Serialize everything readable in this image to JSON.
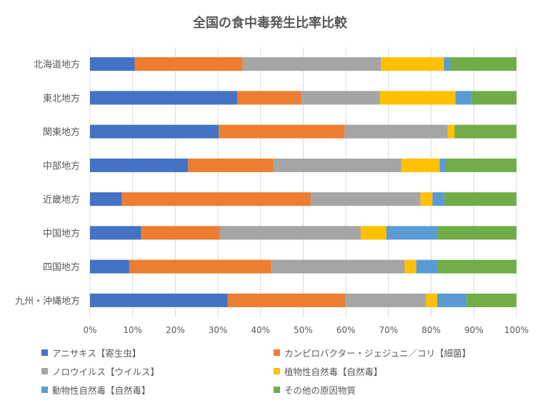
{
  "chart_data": {
    "type": "bar",
    "orientation": "horizontal",
    "stacked": "percent",
    "title": "全国の食中毒発生比率比較",
    "categories": [
      "北海道地方",
      "東北地方",
      "関東地方",
      "中部地方",
      "近畿地方",
      "中国地方",
      "四国地方",
      "九州・沖縄地方"
    ],
    "series": [
      {
        "name": "アニサキス【寄生虫】",
        "color": "#4472C4",
        "values": [
          10.5,
          34.5,
          30.2,
          23.0,
          7.5,
          12.0,
          9.2,
          32.3
        ]
      },
      {
        "name": "カンピロバクター・ジェジュニ／コリ【細菌】",
        "color": "#ED7D31",
        "values": [
          25.3,
          15.0,
          29.5,
          20.0,
          44.3,
          18.5,
          33.3,
          27.5
        ]
      },
      {
        "name": "ノロウイルス【ウイルス】",
        "color": "#A5A5A5",
        "values": [
          32.5,
          18.5,
          24.2,
          30.0,
          25.7,
          33.0,
          31.3,
          19.0
        ]
      },
      {
        "name": "植物性自然毒【自然毒】",
        "color": "#FFC000",
        "values": [
          14.7,
          17.7,
          1.6,
          9.0,
          2.8,
          6.0,
          2.7,
          2.6
        ]
      },
      {
        "name": "動物性自然毒【自然毒】",
        "color": "#5B9BD5",
        "values": [
          1.5,
          3.8,
          0.0,
          1.5,
          2.8,
          12.0,
          5.0,
          6.9
        ]
      },
      {
        "name": "その他の原因物質",
        "color": "#70AD47",
        "values": [
          15.5,
          10.5,
          14.5,
          16.5,
          16.9,
          18.5,
          18.5,
          11.7
        ]
      }
    ],
    "xlim": [
      0,
      100
    ],
    "x_ticks": [
      "0%",
      "10%",
      "20%",
      "30%",
      "40%",
      "50%",
      "60%",
      "70%",
      "80%",
      "90%",
      "100%"
    ],
    "grid": true,
    "legend_position": "bottom"
  }
}
